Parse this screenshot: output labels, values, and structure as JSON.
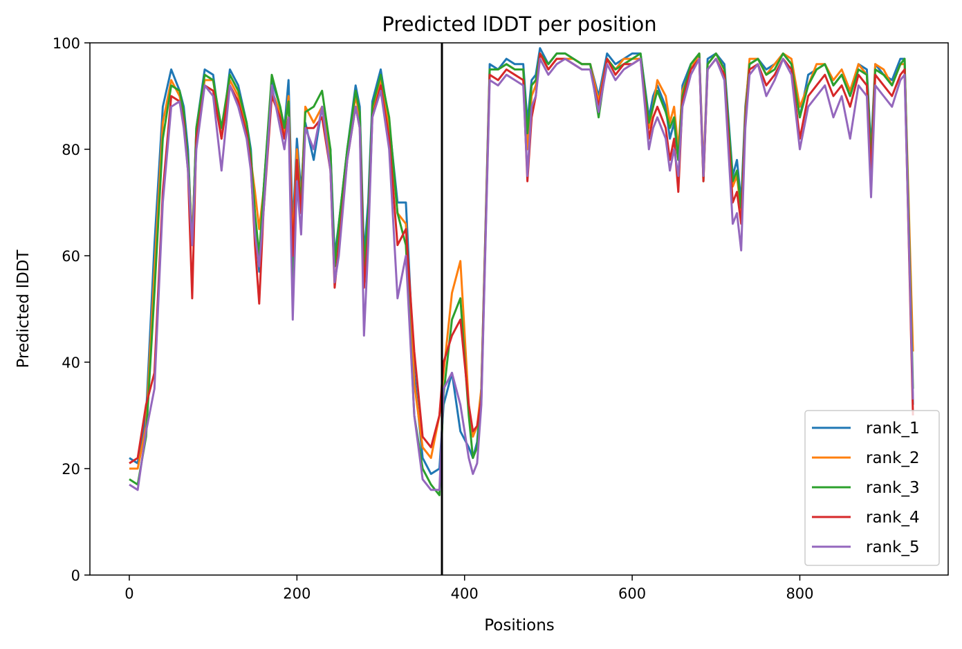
{
  "chart_data": {
    "type": "line",
    "title": "Predicted lDDT per position",
    "xlabel": "Positions",
    "ylabel": "Predicted lDDT",
    "xlim": [
      -47,
      977
    ],
    "ylim": [
      0,
      100
    ],
    "xticks": [
      0,
      200,
      400,
      600,
      800
    ],
    "yticks": [
      0,
      20,
      40,
      60,
      80,
      100
    ],
    "vline": 373,
    "legend_position": "lower-right",
    "grid": false,
    "series": [
      {
        "name": "rank_1",
        "color": "#1f77b4",
        "x": [
          0,
          10,
          20,
          30,
          40,
          50,
          60,
          65,
          70,
          75,
          80,
          90,
          100,
          110,
          120,
          130,
          140,
          145,
          150,
          155,
          160,
          170,
          180,
          185,
          190,
          195,
          200,
          205,
          210,
          220,
          230,
          240,
          245,
          250,
          260,
          270,
          275,
          280,
          285,
          290,
          300,
          310,
          320,
          330,
          340,
          350,
          360,
          370,
          375,
          385,
          395,
          405,
          410,
          415,
          420,
          430,
          440,
          450,
          460,
          470,
          475,
          480,
          485,
          490,
          500,
          510,
          520,
          530,
          540,
          550,
          560,
          570,
          580,
          590,
          600,
          610,
          620,
          625,
          630,
          640,
          645,
          650,
          655,
          660,
          670,
          680,
          685,
          690,
          700,
          710,
          720,
          725,
          730,
          735,
          740,
          750,
          760,
          770,
          780,
          790,
          800,
          810,
          820,
          830,
          840,
          850,
          860,
          870,
          880,
          885,
          890,
          900,
          910,
          920,
          925,
          935
        ],
        "values": [
          22,
          21,
          30,
          62,
          88,
          95,
          91,
          88,
          80,
          62,
          84,
          95,
          94,
          82,
          95,
          92,
          85,
          80,
          66,
          57,
          72,
          93,
          88,
          84,
          93,
          65,
          82,
          72,
          85,
          78,
          88,
          80,
          60,
          66,
          80,
          92,
          88,
          60,
          70,
          89,
          95,
          85,
          70,
          70,
          38,
          22,
          19,
          20,
          32,
          38,
          27,
          24,
          22,
          25,
          35,
          96,
          95,
          97,
          96,
          96,
          85,
          93,
          94,
          99,
          96,
          98,
          98,
          97,
          96,
          96,
          90,
          98,
          96,
          97,
          98,
          98,
          86,
          90,
          92,
          88,
          82,
          85,
          78,
          92,
          96,
          98,
          75,
          97,
          98,
          96,
          75,
          78,
          70,
          88,
          96,
          97,
          95,
          96,
          98,
          96,
          86,
          94,
          95,
          96,
          92,
          94,
          90,
          96,
          95,
          80,
          96,
          94,
          93,
          97,
          97,
          32
        ]
      },
      {
        "name": "rank_2",
        "color": "#ff7f0e",
        "x": [
          0,
          10,
          20,
          30,
          40,
          50,
          60,
          65,
          70,
          75,
          80,
          90,
          100,
          110,
          120,
          130,
          140,
          145,
          150,
          155,
          160,
          170,
          180,
          185,
          190,
          195,
          200,
          205,
          210,
          220,
          230,
          240,
          245,
          250,
          260,
          270,
          275,
          280,
          285,
          290,
          300,
          310,
          320,
          330,
          340,
          350,
          360,
          370,
          375,
          385,
          395,
          405,
          410,
          415,
          420,
          430,
          440,
          450,
          460,
          470,
          475,
          480,
          485,
          490,
          500,
          510,
          520,
          530,
          540,
          550,
          560,
          570,
          580,
          590,
          600,
          610,
          620,
          625,
          630,
          640,
          645,
          650,
          655,
          660,
          670,
          680,
          685,
          690,
          700,
          710,
          720,
          725,
          730,
          735,
          740,
          750,
          760,
          770,
          780,
          790,
          800,
          810,
          820,
          830,
          840,
          850,
          860,
          870,
          880,
          885,
          890,
          900,
          910,
          920,
          925,
          935
        ],
        "values": [
          20,
          20,
          28,
          57,
          85,
          93,
          90,
          86,
          78,
          63,
          83,
          93,
          93,
          82,
          93,
          90,
          84,
          78,
          72,
          65,
          72,
          91,
          87,
          83,
          90,
          62,
          80,
          70,
          88,
          85,
          88,
          78,
          58,
          64,
          79,
          90,
          86,
          55,
          66,
          87,
          93,
          84,
          68,
          66,
          36,
          24,
          22,
          30,
          38,
          53,
          59,
          32,
          26,
          28,
          35,
          95,
          95,
          96,
          95,
          95,
          80,
          90,
          92,
          98,
          95,
          97,
          97,
          97,
          96,
          96,
          89,
          97,
          95,
          97,
          97,
          97,
          84,
          88,
          93,
          90,
          85,
          88,
          80,
          91,
          95,
          98,
          76,
          96,
          98,
          95,
          73,
          75,
          68,
          87,
          97,
          97,
          94,
          96,
          98,
          97,
          88,
          92,
          96,
          96,
          93,
          95,
          91,
          96,
          94,
          78,
          96,
          95,
          92,
          96,
          96,
          42
        ]
      },
      {
        "name": "rank_3",
        "color": "#2ca02c",
        "x": [
          0,
          10,
          20,
          30,
          40,
          50,
          60,
          65,
          70,
          75,
          80,
          90,
          100,
          110,
          120,
          130,
          140,
          145,
          150,
          155,
          160,
          170,
          180,
          185,
          190,
          195,
          200,
          205,
          210,
          220,
          230,
          240,
          245,
          250,
          260,
          270,
          275,
          280,
          285,
          290,
          300,
          310,
          320,
          330,
          340,
          350,
          360,
          370,
          375,
          385,
          395,
          405,
          410,
          415,
          420,
          430,
          440,
          450,
          460,
          470,
          475,
          480,
          485,
          490,
          500,
          510,
          520,
          530,
          540,
          550,
          560,
          570,
          580,
          590,
          600,
          610,
          620,
          625,
          630,
          640,
          645,
          650,
          655,
          660,
          670,
          680,
          685,
          690,
          700,
          710,
          720,
          725,
          730,
          735,
          740,
          750,
          760,
          770,
          780,
          790,
          800,
          810,
          820,
          830,
          840,
          850,
          860,
          870,
          880,
          885,
          890,
          900,
          910,
          920,
          925,
          935
        ],
        "values": [
          18,
          17,
          26,
          53,
          82,
          92,
          91,
          87,
          78,
          62,
          84,
          94,
          93,
          84,
          94,
          91,
          85,
          79,
          68,
          60,
          72,
          94,
          88,
          84,
          89,
          53,
          78,
          70,
          87,
          88,
          91,
          80,
          58,
          66,
          80,
          91,
          87,
          58,
          68,
          88,
          94,
          86,
          68,
          62,
          30,
          20,
          17,
          15,
          34,
          48,
          52,
          30,
          22,
          24,
          34,
          95,
          95,
          96,
          95,
          95,
          83,
          92,
          93,
          98,
          96,
          98,
          98,
          97,
          96,
          96,
          86,
          97,
          95,
          96,
          97,
          98,
          85,
          88,
          91,
          87,
          84,
          86,
          78,
          90,
          96,
          98,
          74,
          96,
          98,
          95,
          74,
          76,
          69,
          86,
          96,
          97,
          94,
          95,
          98,
          96,
          86,
          92,
          95,
          96,
          92,
          94,
          90,
          95,
          94,
          78,
          95,
          94,
          92,
          96,
          97,
          35
        ]
      },
      {
        "name": "rank_4",
        "color": "#d62728",
        "x": [
          0,
          10,
          20,
          30,
          40,
          50,
          60,
          65,
          70,
          75,
          80,
          90,
          100,
          110,
          120,
          130,
          140,
          145,
          150,
          155,
          160,
          170,
          180,
          185,
          190,
          195,
          200,
          205,
          210,
          220,
          230,
          240,
          245,
          250,
          260,
          270,
          275,
          280,
          285,
          290,
          300,
          310,
          320,
          330,
          340,
          350,
          360,
          370,
          375,
          385,
          395,
          405,
          410,
          415,
          420,
          430,
          440,
          450,
          460,
          470,
          475,
          480,
          485,
          490,
          500,
          510,
          520,
          530,
          540,
          550,
          560,
          570,
          580,
          590,
          600,
          610,
          620,
          625,
          630,
          640,
          645,
          650,
          655,
          660,
          670,
          680,
          685,
          690,
          700,
          710,
          720,
          725,
          730,
          735,
          740,
          750,
          760,
          770,
          780,
          790,
          800,
          810,
          820,
          830,
          840,
          850,
          860,
          870,
          880,
          885,
          890,
          900,
          910,
          920,
          925,
          935
        ],
        "values": [
          21,
          22,
          32,
          38,
          72,
          90,
          89,
          85,
          76,
          52,
          82,
          92,
          91,
          82,
          92,
          89,
          83,
          77,
          62,
          51,
          68,
          90,
          86,
          82,
          86,
          60,
          78,
          68,
          84,
          84,
          86,
          76,
          54,
          62,
          78,
          88,
          84,
          54,
          64,
          86,
          92,
          82,
          62,
          65,
          42,
          26,
          24,
          30,
          40,
          45,
          48,
          32,
          27,
          28,
          33,
          94,
          93,
          95,
          94,
          93,
          74,
          86,
          90,
          98,
          95,
          97,
          97,
          96,
          95,
          95,
          88,
          97,
          94,
          96,
          96,
          97,
          82,
          86,
          88,
          84,
          78,
          82,
          72,
          89,
          95,
          97,
          74,
          95,
          97,
          94,
          70,
          72,
          66,
          85,
          95,
          96,
          92,
          94,
          97,
          95,
          82,
          90,
          92,
          94,
          90,
          92,
          88,
          94,
          92,
          75,
          94,
          92,
          90,
          94,
          95,
          30
        ]
      },
      {
        "name": "rank_5",
        "color": "#9467bd",
        "x": [
          0,
          10,
          20,
          30,
          40,
          50,
          60,
          65,
          70,
          75,
          80,
          90,
          100,
          110,
          120,
          130,
          140,
          145,
          150,
          155,
          160,
          170,
          180,
          185,
          190,
          195,
          200,
          205,
          210,
          220,
          230,
          240,
          245,
          250,
          260,
          270,
          275,
          280,
          285,
          290,
          300,
          310,
          320,
          330,
          340,
          350,
          360,
          370,
          375,
          385,
          395,
          405,
          410,
          415,
          420,
          430,
          440,
          450,
          460,
          470,
          475,
          480,
          485,
          490,
          500,
          510,
          520,
          530,
          540,
          550,
          560,
          570,
          580,
          590,
          600,
          610,
          620,
          625,
          630,
          640,
          645,
          650,
          655,
          660,
          670,
          680,
          685,
          690,
          700,
          710,
          720,
          725,
          730,
          735,
          740,
          750,
          760,
          770,
          780,
          790,
          800,
          810,
          820,
          830,
          840,
          850,
          860,
          870,
          880,
          885,
          890,
          900,
          910,
          920,
          925,
          935
        ],
        "values": [
          17,
          16,
          27,
          35,
          70,
          88,
          89,
          84,
          76,
          62,
          80,
          92,
          90,
          76,
          92,
          88,
          82,
          76,
          64,
          58,
          68,
          92,
          84,
          80,
          86,
          48,
          74,
          64,
          84,
          80,
          88,
          76,
          55,
          60,
          78,
          88,
          84,
          45,
          62,
          86,
          91,
          80,
          52,
          60,
          30,
          18,
          16,
          16,
          35,
          38,
          32,
          22,
          19,
          21,
          32,
          93,
          92,
          94,
          93,
          92,
          75,
          88,
          90,
          97,
          94,
          96,
          97,
          96,
          95,
          95,
          87,
          96,
          93,
          95,
          96,
          97,
          80,
          84,
          86,
          82,
          76,
          80,
          75,
          88,
          94,
          97,
          75,
          95,
          97,
          93,
          66,
          68,
          61,
          84,
          94,
          96,
          90,
          93,
          97,
          94,
          80,
          88,
          90,
          92,
          86,
          90,
          82,
          92,
          90,
          71,
          92,
          90,
          88,
          93,
          94,
          33
        ]
      }
    ]
  }
}
